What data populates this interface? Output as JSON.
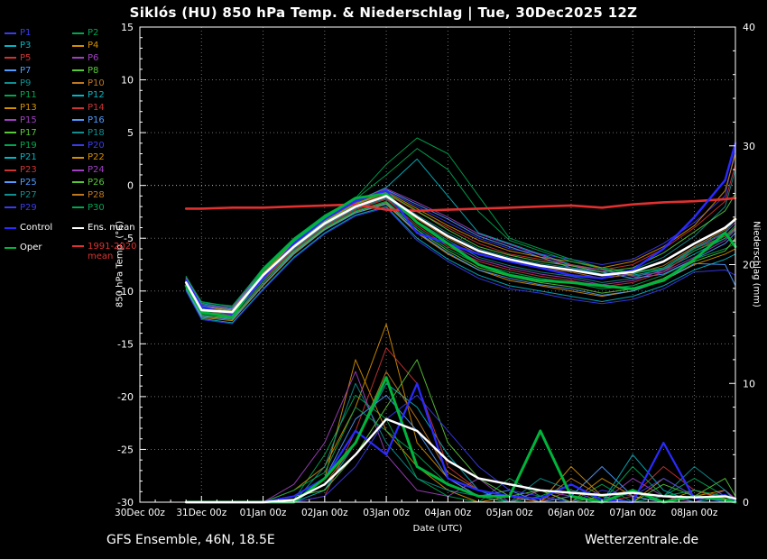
{
  "footer": {
    "left": "GFS Ensemble, 46N, 18.5E",
    "right": "Wetterzentrale.de"
  },
  "legend": {
    "control": {
      "label": "Control",
      "color": "#2a2aff"
    },
    "ens_mean": {
      "label": "Ens. mean",
      "color": "#ffffff"
    },
    "oper": {
      "label": "Oper",
      "color": "#00b43c"
    },
    "climate": {
      "line1": "1991-2020",
      "line2": "mean",
      "color": "#e03030"
    }
  },
  "chart_data": {
    "type": "line",
    "title": "Siklós (HU) 850 hPa Temp. & Niederschlag | Tue, 30Dec2025 12Z",
    "xlabel": "Date (UTC)",
    "ylabel_left": "850 hPa Temp. (°C)",
    "ylabel_right": "Niederschlag (mm)",
    "background": "#000000",
    "grid": "dotted",
    "x_domain": [
      0,
      232
    ],
    "x_tick_hours": [
      0,
      24,
      48,
      72,
      96,
      120,
      144,
      168,
      192,
      216
    ],
    "x_tick_labels": [
      "30Dec 00z",
      "31Dec 00z",
      "01Jan 00z",
      "02Jan 00z",
      "03Jan 00z",
      "04Jan 00z",
      "05Jan 00z",
      "06Jan 00z",
      "07Jan 00z",
      "08Jan 00z"
    ],
    "temp_range": [
      -30,
      15
    ],
    "temp_ticks": [
      15,
      10,
      5,
      0,
      -5,
      -10,
      -15,
      -20,
      -25,
      -30
    ],
    "precip_range": [
      0,
      40
    ],
    "precip_ticks": [
      40,
      30,
      20,
      10,
      0
    ],
    "x_hours": [
      18,
      24,
      36,
      48,
      60,
      72,
      84,
      96,
      108,
      120,
      132,
      144,
      156,
      168,
      180,
      192,
      204,
      216,
      228,
      232
    ],
    "ens_mean": {
      "name": "Ens. mean",
      "color": "#ffffff",
      "temp": [
        -9.2,
        -11.8,
        -12.0,
        -8.5,
        -5.8,
        -3.6,
        -2.0,
        -1.0,
        -3.0,
        -4.8,
        -6.2,
        -7.0,
        -7.6,
        -8.0,
        -8.5,
        -8.2,
        -7.2,
        -5.5,
        -4.0,
        -3.2
      ],
      "precip": [
        0,
        0,
        0,
        0,
        0.2,
        1.5,
        4.0,
        7.0,
        6.0,
        3.5,
        2.0,
        1.5,
        1.0,
        0.8,
        0.6,
        0.8,
        0.5,
        0.4,
        0.5,
        0.3
      ]
    },
    "control": {
      "name": "Control",
      "color": "#2a2aff",
      "temp": [
        -9.0,
        -11.5,
        -12.2,
        -8.8,
        -5.5,
        -3.2,
        -1.5,
        -0.5,
        -4.5,
        -5.5,
        -6.5,
        -7.2,
        -7.8,
        -8.5,
        -8.8,
        -8.0,
        -6.0,
        -3.0,
        0.5,
        4.0
      ],
      "precip": [
        0,
        0,
        0,
        0,
        0.5,
        2,
        6,
        4,
        10,
        2,
        1,
        0.5,
        0.3,
        1.5,
        0.2,
        0,
        5,
        0.3,
        0.6,
        0.2
      ]
    },
    "oper": {
      "name": "Oper",
      "color": "#00b43c",
      "temp": [
        -9.5,
        -12.0,
        -12.5,
        -8.0,
        -5.2,
        -3.0,
        -1.2,
        -0.8,
        -3.5,
        -5.5,
        -7.5,
        -8.5,
        -9.0,
        -9.2,
        -9.5,
        -9.8,
        -9.0,
        -7.0,
        -4.5,
        -5.8
      ],
      "precip": [
        0,
        0,
        0,
        0,
        0,
        2,
        5,
        10.5,
        3,
        1.5,
        0.5,
        0.5,
        6,
        0.5,
        0,
        1.0,
        0,
        0.5,
        0.2,
        0
      ]
    },
    "climate_mean": {
      "name": "1991-2020 mean",
      "color": "#e03030",
      "temp": [
        -2.2,
        -2.2,
        -2.1,
        -2.1,
        -2.0,
        -1.9,
        -1.8,
        -2.3,
        -2.4,
        -2.3,
        -2.2,
        -2.1,
        -2.0,
        -1.9,
        -2.1,
        -1.8,
        -1.6,
        -1.5,
        -1.3,
        -1.2
      ]
    },
    "members": [
      {
        "name": "P1",
        "color": "#3a3af0",
        "temp": [
          -9.0,
          -11.5,
          -11.8,
          -8.2,
          -5.5,
          -3.4,
          -1.8,
          -0.5,
          -2.0,
          -3.5,
          -5.0,
          -6.0,
          -6.5,
          -7.0,
          -7.5,
          -7.0,
          -5.5,
          -3.5,
          -1.0,
          3.5
        ]
      },
      {
        "name": "P2",
        "color": "#00a651",
        "temp": [
          -9.5,
          -12.2,
          -12.4,
          -9.0,
          -6.2,
          -4.0,
          -2.4,
          -1.5,
          -4.0,
          -6.0,
          -7.5,
          -8.2,
          -8.8,
          -9.2,
          -9.8,
          -9.5,
          -8.5,
          -7.0,
          -6.0,
          -5.5
        ],
        "precip": [
          0,
          0,
          0,
          0,
          0.2,
          4,
          9,
          7,
          2,
          0.5,
          0,
          2,
          0.5,
          0,
          1.5,
          0,
          0.5,
          2,
          0.5,
          0
        ]
      },
      {
        "name": "P3",
        "color": "#00b7c3",
        "temp": [
          -8.8,
          -11.2,
          -11.6,
          -8.0,
          -5.2,
          -3.0,
          -1.5,
          -0.2,
          2.5,
          -1.0,
          -4.5,
          -5.5,
          -6.5,
          -7.5,
          -8.0,
          -8.5,
          -8.0,
          -6.5,
          -5.0,
          -4.0
        ]
      },
      {
        "name": "P4",
        "color": "#d48f00",
        "temp": [
          -9.8,
          -12.5,
          -12.8,
          -9.5,
          -6.5,
          -4.2,
          -2.6,
          -1.8,
          -4.5,
          -6.5,
          -8.0,
          -9.0,
          -9.5,
          -10.0,
          -10.5,
          -10.0,
          -9.0,
          -7.5,
          -6.5,
          -6.0
        ],
        "precip": [
          0,
          0,
          0,
          0,
          0.5,
          2,
          12,
          6,
          3,
          1,
          0,
          0.5,
          0,
          3,
          0.5,
          0,
          2,
          0.5,
          1,
          0.2
        ]
      },
      {
        "name": "P5",
        "color": "#cc3333",
        "temp": [
          -9.1,
          -11.6,
          -11.9,
          -8.4,
          -5.6,
          -3.5,
          -1.9,
          -0.8,
          -2.5,
          -4.0,
          -5.5,
          -6.5,
          -7.0,
          -7.5,
          -8.0,
          -7.5,
          -6.0,
          -4.0,
          -1.5,
          2.0
        ]
      },
      {
        "name": "P6",
        "color": "#a040c0",
        "temp": [
          -9.4,
          -12.0,
          -12.2,
          -8.8,
          -6.0,
          -3.8,
          -2.2,
          -1.2,
          -3.5,
          -5.5,
          -7.0,
          -7.8,
          -8.4,
          -8.8,
          -9.4,
          -9.0,
          -8.0,
          -6.0,
          -4.5,
          -3.5
        ]
      },
      {
        "name": "P7",
        "color": "#4f9bff",
        "temp": [
          -8.9,
          -11.4,
          -11.7,
          -8.1,
          -5.3,
          -3.2,
          -1.6,
          -0.4,
          -1.8,
          -3.2,
          -4.8,
          -5.8,
          -6.8,
          -7.8,
          -8.2,
          -8.8,
          -8.4,
          -7.0,
          -5.5,
          -4.5
        ]
      },
      {
        "name": "P8",
        "color": "#59c838",
        "temp": [
          -9.6,
          -12.3,
          -12.6,
          -9.2,
          -6.3,
          -4.1,
          -2.5,
          -1.6,
          -4.2,
          -6.2,
          -7.8,
          -8.6,
          -9.2,
          -9.6,
          -10.2,
          -9.8,
          -8.8,
          -7.2,
          -6.2,
          -5.0
        ]
      },
      {
        "name": "P9",
        "color": "#0f8f8f",
        "temp": [
          -9.2,
          -11.7,
          -12.0,
          -8.5,
          -5.7,
          -3.6,
          -2.0,
          -1.0,
          -2.8,
          -4.5,
          -6.0,
          -6.8,
          -7.4,
          -7.8,
          -8.4,
          -8.0,
          -6.8,
          -4.8,
          -2.0,
          1.5
        ]
      },
      {
        "name": "P10",
        "color": "#c07820",
        "temp": [
          -9.3,
          -11.9,
          -12.1,
          -8.6,
          -5.9,
          -3.7,
          -2.1,
          -1.1,
          -3.2,
          -5.0,
          -6.5,
          -7.2,
          -7.8,
          -8.2,
          -8.8,
          -8.4,
          -7.6,
          -5.8,
          -4.2,
          -3.0
        ]
      },
      {
        "name": "P11",
        "color": "#00a651",
        "temp": [
          -8.7,
          -11.0,
          -11.5,
          -7.8,
          -5.0,
          -2.8,
          -1.2,
          2.0,
          4.5,
          3.0,
          -1.0,
          -5.0,
          -6.0,
          -7.0,
          -7.8,
          -8.2,
          -7.8,
          -6.0,
          -4.8,
          -3.8
        ]
      },
      {
        "name": "P12",
        "color": "#00b7c3",
        "temp": [
          -9.9,
          -12.6,
          -13.0,
          -9.8,
          -6.8,
          -4.5,
          -2.8,
          -2.0,
          -5.0,
          -7.0,
          -8.5,
          -9.5,
          -10.0,
          -10.5,
          -11.0,
          -10.5,
          -9.5,
          -8.0,
          -7.0,
          -6.5
        ]
      },
      {
        "name": "P13",
        "color": "#d48f00",
        "temp": [
          -9.0,
          -11.5,
          -11.8,
          -8.3,
          -5.4,
          -3.3,
          -1.7,
          -0.6,
          -2.2,
          -3.8,
          -5.2,
          -6.2,
          -6.8,
          -7.2,
          -7.8,
          -7.2,
          -5.8,
          -3.8,
          -0.5,
          3.0
        ]
      },
      {
        "name": "P14",
        "color": "#cc3333",
        "temp": [
          -9.5,
          -12.1,
          -12.3,
          -8.9,
          -6.1,
          -3.9,
          -2.3,
          -1.3,
          -3.8,
          -5.8,
          -7.2,
          -8.0,
          -8.6,
          -9.0,
          -9.6,
          -9.2,
          -8.2,
          -6.2,
          -4.8,
          -4.0
        ]
      },
      {
        "name": "P15",
        "color": "#a040c0",
        "temp": [
          -8.8,
          -11.3,
          -11.6,
          -8.0,
          -5.1,
          -3.1,
          -1.4,
          -0.3,
          -1.6,
          -3.0,
          -4.6,
          -5.6,
          -6.6,
          -7.6,
          -8.0,
          -8.6,
          -8.2,
          -6.8,
          -5.2,
          -4.2
        ]
      },
      {
        "name": "P16",
        "color": "#4f9bff",
        "temp": [
          -9.7,
          -12.4,
          -12.7,
          -9.4,
          -6.4,
          -4.2,
          -2.6,
          -1.7,
          -4.4,
          -6.4,
          -8.0,
          -8.8,
          -9.4,
          -9.8,
          -10.4,
          -10.0,
          -9.0,
          -7.4,
          -7.5,
          -9.5
        ]
      },
      {
        "name": "P17",
        "color": "#59c838",
        "temp": [
          -9.1,
          -11.6,
          -11.9,
          -8.4,
          -5.6,
          -3.4,
          -1.8,
          -0.7,
          -2.4,
          -4.2,
          -5.8,
          -6.6,
          -7.2,
          -7.6,
          -8.2,
          -7.8,
          -6.4,
          -4.4,
          -2.4,
          -0.8
        ]
      },
      {
        "name": "P18",
        "color": "#0f8f8f",
        "temp": [
          -9.4,
          -12.0,
          -12.2,
          -8.7,
          -6.0,
          -3.8,
          -2.2,
          -1.2,
          -3.4,
          -5.2,
          -6.8,
          -7.6,
          -8.2,
          -8.6,
          -9.2,
          -8.8,
          -7.8,
          -5.9,
          -4.4,
          -3.2
        ]
      },
      {
        "name": "P19",
        "color": "#00a651",
        "temp": [
          -8.6,
          -11.1,
          -11.4,
          -7.9,
          -5.0,
          -2.9,
          -1.3,
          1.0,
          3.5,
          1.5,
          -2.5,
          -5.2,
          -6.2,
          -7.2,
          -7.9,
          -8.3,
          -7.9,
          -6.2,
          -5.0,
          -4.1
        ]
      },
      {
        "name": "P20",
        "color": "#3a3af0",
        "temp": [
          -10.0,
          -12.7,
          -13.1,
          -9.9,
          -6.9,
          -4.6,
          -2.9,
          -2.1,
          -5.2,
          -7.2,
          -8.8,
          -9.8,
          -10.2,
          -10.8,
          -11.2,
          -10.8,
          -9.8,
          -8.2,
          -8.0,
          -8.5
        ]
      },
      {
        "name": "P21",
        "color": "#00b7c3",
        "precip": [
          0,
          0,
          0,
          0,
          0,
          1,
          5,
          10,
          8,
          4,
          1,
          0,
          0.5,
          0,
          0,
          4,
          1,
          0,
          0.5,
          0
        ]
      },
      {
        "name": "P22",
        "color": "#d48f00",
        "precip": [
          0,
          0,
          0,
          0,
          1,
          3,
          8,
          15,
          5,
          2,
          0.5,
          0,
          1,
          0,
          2,
          0.5,
          0,
          1,
          0.3,
          0
        ]
      },
      {
        "name": "P23",
        "color": "#cc3333",
        "precip": [
          0,
          0,
          0,
          0,
          0,
          0.5,
          6,
          13,
          10,
          3,
          1,
          0.5,
          0,
          1,
          0,
          0.5,
          3,
          1,
          0.2,
          0
        ]
      },
      {
        "name": "P24",
        "color": "#a040c0",
        "precip": [
          0,
          0,
          0,
          0,
          1.5,
          5,
          11,
          4,
          1,
          0.5,
          2,
          0,
          1,
          0.5,
          0,
          2,
          0.5,
          0,
          1,
          0.3
        ]
      },
      {
        "name": "P25",
        "color": "#4f9bff",
        "precip": [
          0,
          0,
          0,
          0,
          0,
          2,
          7,
          9,
          6,
          2,
          0.5,
          1,
          0,
          0.5,
          3,
          0.5,
          0,
          0.5,
          0,
          0
        ]
      },
      {
        "name": "P26",
        "color": "#59c838",
        "precip": [
          0,
          0,
          0,
          0,
          0.5,
          1,
          4,
          8,
          12,
          5,
          2,
          0.5,
          1,
          0,
          0.5,
          0,
          1.5,
          0.5,
          2,
          0.5
        ]
      },
      {
        "name": "P27",
        "color": "#0f8f8f",
        "precip": [
          0,
          0,
          0,
          0,
          0,
          3,
          10,
          5,
          2,
          1,
          0.5,
          0,
          2,
          1,
          0.5,
          0,
          0.5,
          3,
          1,
          0
        ]
      },
      {
        "name": "P28",
        "color": "#c07820",
        "precip": [
          0,
          0,
          0,
          0,
          0.2,
          1.5,
          5,
          11,
          7,
          2.5,
          1,
          0.5,
          0,
          2,
          0.5,
          1,
          0,
          0.5,
          0.3,
          0
        ]
      },
      {
        "name": "P29",
        "color": "#3a3af0",
        "precip": [
          0,
          0,
          0,
          0,
          0,
          0.5,
          3,
          7,
          9,
          6,
          3,
          1,
          0.5,
          0,
          1,
          0.5,
          2,
          0.5,
          0,
          0.2
        ]
      },
      {
        "name": "P30",
        "color": "#00a651",
        "precip": [
          0,
          0,
          0,
          0,
          1,
          2.5,
          8,
          6,
          4,
          1.5,
          0.5,
          0,
          0.5,
          1.5,
          0,
          3,
          0.5,
          1,
          0.5,
          0
        ]
      }
    ]
  }
}
